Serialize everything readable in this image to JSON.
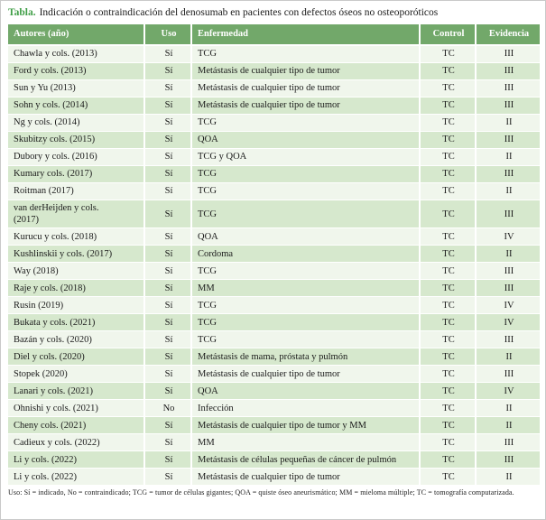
{
  "title": {
    "label": "Tabla.",
    "text": "Indicación o contraindicación del denosumab en pacientes con defectos óseos no osteoporóticos"
  },
  "table": {
    "columns": [
      {
        "key": "autores",
        "label": "Autores (año)"
      },
      {
        "key": "uso",
        "label": "Uso"
      },
      {
        "key": "enfermedad",
        "label": "Enfermedad"
      },
      {
        "key": "control",
        "label": "Control"
      },
      {
        "key": "evidencia",
        "label": "Evidencia"
      }
    ],
    "rows": [
      {
        "autores": "Chawla y cols. (2013)",
        "uso": "Sí",
        "enfermedad": "TCG",
        "control": "TC",
        "evidencia": "III"
      },
      {
        "autores": "Ford y cols. (2013)",
        "uso": "Sí",
        "enfermedad": "Metástasis de cualquier tipo de tumor",
        "control": "TC",
        "evidencia": "III"
      },
      {
        "autores": "Sun y Yu (2013)",
        "uso": "Sí",
        "enfermedad": "Metástasis de cualquier tipo de tumor",
        "control": "TC",
        "evidencia": "III"
      },
      {
        "autores": "Sohn y cols. (2014)",
        "uso": "Sí",
        "enfermedad": "Metástasis de cualquier tipo de tumor",
        "control": "TC",
        "evidencia": "III"
      },
      {
        "autores": "Ng y cols. (2014)",
        "uso": "Sí",
        "enfermedad": "TCG",
        "control": "TC",
        "evidencia": "II"
      },
      {
        "autores": "Skubitzy cols. (2015)",
        "uso": "Sí",
        "enfermedad": "QOA",
        "control": "TC",
        "evidencia": "III"
      },
      {
        "autores": "Dubory y cols. (2016)",
        "uso": "Sí",
        "enfermedad": "TCG y QOA",
        "control": "TC",
        "evidencia": "II"
      },
      {
        "autores": "Kumary cols. (2017)",
        "uso": "Sí",
        "enfermedad": "TCG",
        "control": "TC",
        "evidencia": "III"
      },
      {
        "autores": "Roitman (2017)",
        "uso": "Sí",
        "enfermedad": "TCG",
        "control": "TC",
        "evidencia": "II"
      },
      {
        "autores": "van derHeijden y cols.\n(2017)",
        "uso": "Sí",
        "enfermedad": "TCG",
        "control": "TC",
        "evidencia": "III"
      },
      {
        "autores": "Kurucu y cols. (2018)",
        "uso": "Sí",
        "enfermedad": "QOA",
        "control": "TC",
        "evidencia": "IV"
      },
      {
        "autores": "Kushlinskii y cols. (2017)",
        "uso": "Sí",
        "enfermedad": "Cordoma",
        "control": "TC",
        "evidencia": "II"
      },
      {
        "autores": "Way (2018)",
        "uso": "Sí",
        "enfermedad": "TCG",
        "control": "TC",
        "evidencia": "III"
      },
      {
        "autores": "Raje y cols. (2018)",
        "uso": "Sí",
        "enfermedad": "MM",
        "control": "TC",
        "evidencia": "III"
      },
      {
        "autores": "Rusin (2019)",
        "uso": "Sí",
        "enfermedad": "TCG",
        "control": "TC",
        "evidencia": "IV"
      },
      {
        "autores": "Bukata y cols. (2021)",
        "uso": "Sí",
        "enfermedad": "TCG",
        "control": "TC",
        "evidencia": "IV"
      },
      {
        "autores": "Bazán y cols. (2020)",
        "uso": "Sí",
        "enfermedad": "TCG",
        "control": "TC",
        "evidencia": "III"
      },
      {
        "autores": "Diel y cols. (2020)",
        "uso": "Sí",
        "enfermedad": "Metástasis de mama, próstata y pulmón",
        "control": "TC",
        "evidencia": "II"
      },
      {
        "autores": "Stopek (2020)",
        "uso": "Sí",
        "enfermedad": "Metástasis de cualquier tipo de tumor",
        "control": "TC",
        "evidencia": "III"
      },
      {
        "autores": "Lanari y cols. (2021)",
        "uso": "Sí",
        "enfermedad": "QOA",
        "control": "TC",
        "evidencia": "IV"
      },
      {
        "autores": "Ohnishi y cols. (2021)",
        "uso": "No",
        "enfermedad": "Infección",
        "control": "TC",
        "evidencia": "II"
      },
      {
        "autores": "Cheny cols. (2021)",
        "uso": "Sí",
        "enfermedad": "Metástasis de cualquier tipo de tumor y MM",
        "control": "TC",
        "evidencia": "II"
      },
      {
        "autores": "Cadieux y cols. (2022)",
        "uso": "Sí",
        "enfermedad": "MM",
        "control": "TC",
        "evidencia": "III"
      },
      {
        "autores": "Li y cols. (2022)",
        "uso": "Sí",
        "enfermedad": "Metástasis de células pequeñas de cáncer de pulmón",
        "control": "TC",
        "evidencia": "III"
      },
      {
        "autores": "Li y cols. (2022)",
        "uso": "Sí",
        "enfermedad": "Metástasis de cualquier tipo de tumor",
        "control": "TC",
        "evidencia": "II"
      }
    ]
  },
  "footnote": "Uso: Sí = indicado, No = contraindicado; TCG = tumor de células gigantes; QOA = quiste óseo aneurismático; MM = mieloma múltiple; TC = tomografía computarizada.",
  "colors": {
    "header_bg": "#72a86a",
    "header_text": "#ffffff",
    "title_accent": "#3f9e46",
    "row_green": "#d6e8cd",
    "row_pale": "#f0f6ec",
    "body_text": "#1a1a1a",
    "page_border": "#c9c9c9"
  }
}
